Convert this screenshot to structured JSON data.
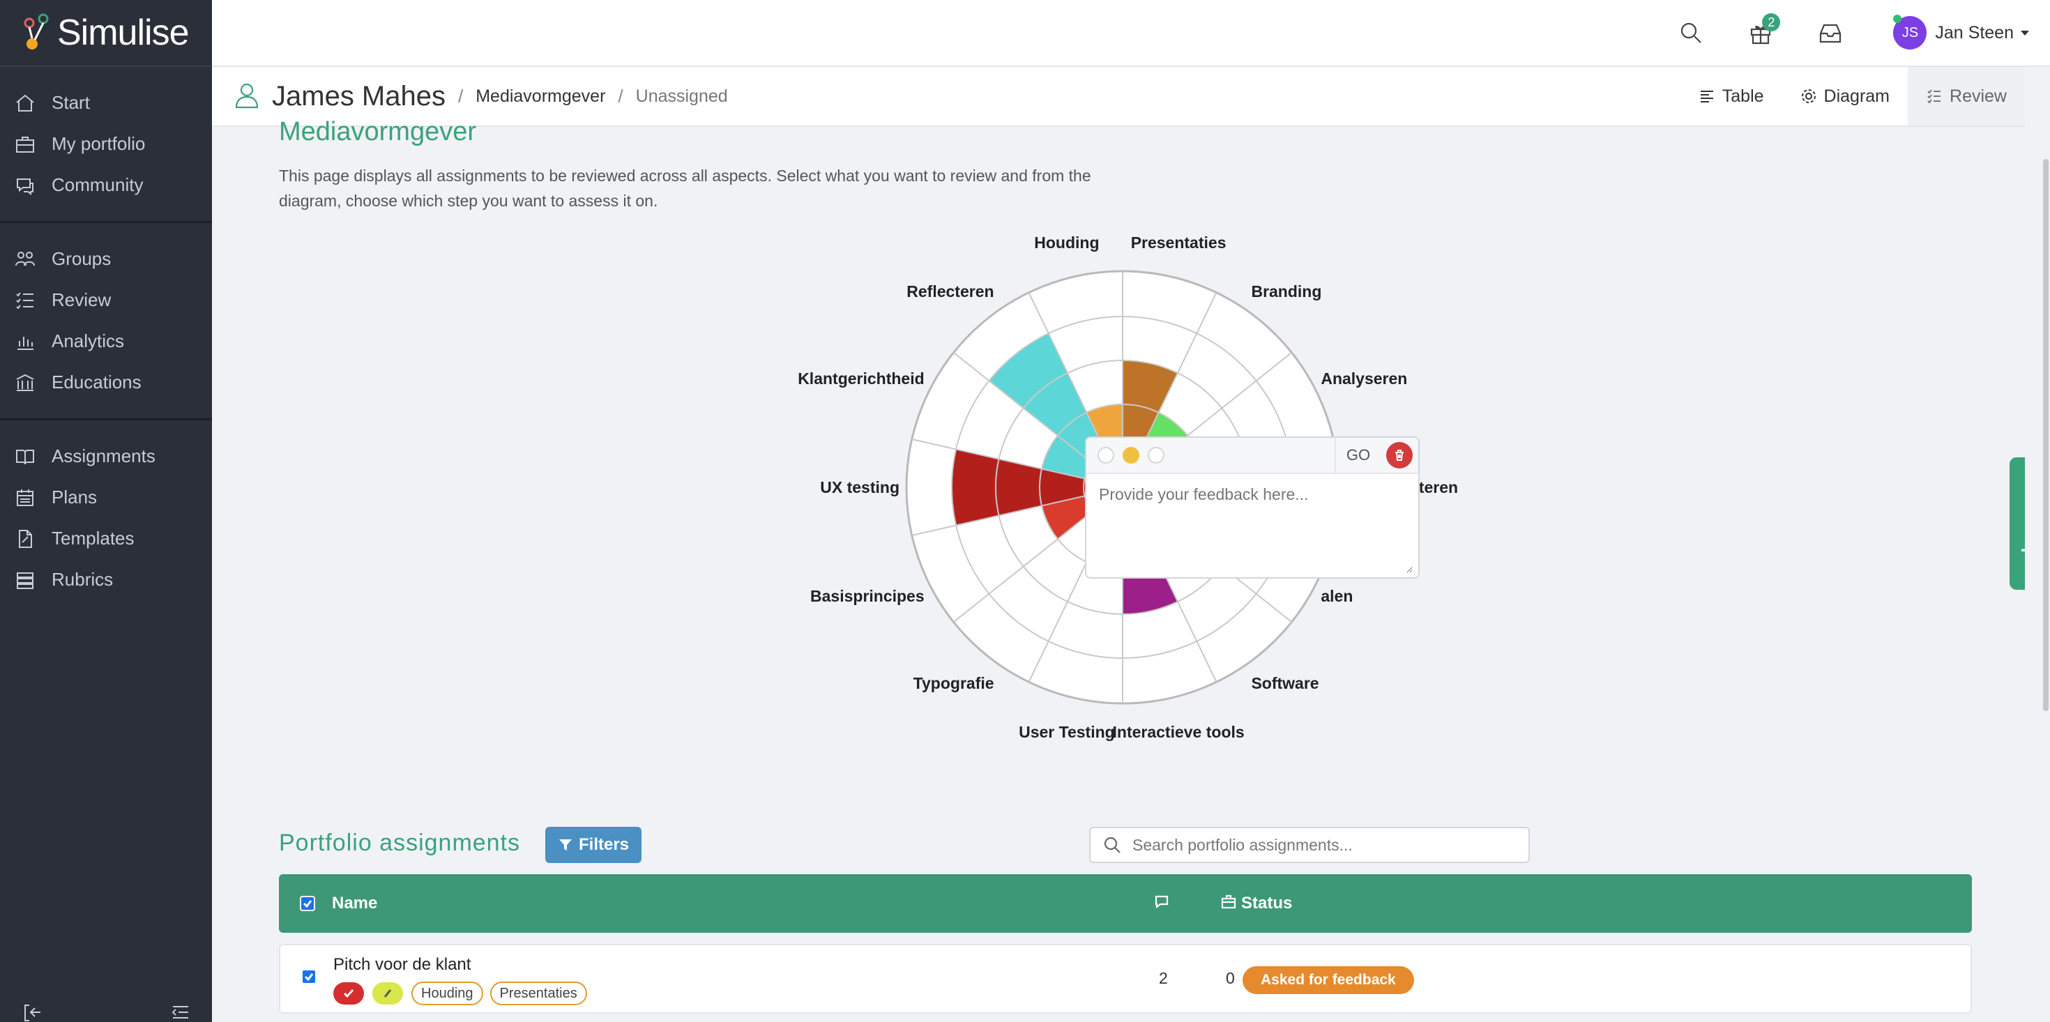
{
  "app": {
    "name": "Simulise"
  },
  "sidebar": {
    "groups": [
      [
        {
          "label": "Start",
          "icon": "home-icon"
        },
        {
          "label": "My portfolio",
          "icon": "briefcase-icon"
        },
        {
          "label": "Community",
          "icon": "chat-icon"
        }
      ],
      [
        {
          "label": "Groups",
          "icon": "users-icon"
        },
        {
          "label": "Review",
          "icon": "checklist-icon"
        },
        {
          "label": "Analytics",
          "icon": "bar-chart-icon"
        },
        {
          "label": "Educations",
          "icon": "institution-icon"
        }
      ],
      [
        {
          "label": "Assignments",
          "icon": "book-icon"
        },
        {
          "label": "Plans",
          "icon": "calendar-icon"
        },
        {
          "label": "Templates",
          "icon": "template-icon"
        },
        {
          "label": "Rubrics",
          "icon": "rubric-icon"
        }
      ]
    ]
  },
  "topbar": {
    "gift_badge": "2",
    "user": {
      "initials": "JS",
      "name": "Jan Steen"
    }
  },
  "subheader": {
    "name": "James Mahes",
    "crumb1": "Mediavormgever",
    "crumb2": "Unassigned",
    "tabs": {
      "table": "Table",
      "diagram": "Diagram",
      "review": "Review"
    }
  },
  "page": {
    "heading": "Mediavormgever",
    "description": "This page displays all assignments to be reviewed across all aspects. Select what you want to review and from the diagram, choose which step you want to assess it on."
  },
  "diagram": {
    "labels": [
      "Presentaties",
      "Branding",
      "Analyseren",
      "Documenteren",
      "alen",
      "Software",
      "Interactieve tools",
      "User Testing",
      "Typografie",
      "Basisprincipes",
      "UX testing",
      "Klantgerichtheid",
      "Reflecteren",
      "Houding"
    ],
    "segments": [
      {
        "aspect": "Presentaties",
        "level": 3,
        "color": "#bd7428"
      },
      {
        "aspect": "Branding",
        "level": 2,
        "color": "#66e066"
      },
      {
        "aspect": "Software",
        "level": 2,
        "color": "#1a10e0"
      },
      {
        "aspect": "Interactieve tools",
        "level": 3,
        "color": "#9c1f8a"
      },
      {
        "aspect": "User Testing",
        "level": 2,
        "color": "#d63ccf"
      },
      {
        "aspect": "Typografie",
        "level": 1,
        "color": "#cc2b2b"
      },
      {
        "aspect": "Basisprincipes",
        "level": 2,
        "color": "#d93b2c"
      },
      {
        "aspect": "UX testing",
        "level": 4,
        "color": "#b3201c"
      },
      {
        "aspect": "Klantgerichtheid",
        "level": 2,
        "color": "#5cd6d6"
      },
      {
        "aspect": "Reflecteren",
        "level": 4,
        "color": "#5cd6d6"
      },
      {
        "aspect": "Houding",
        "level": 2,
        "color": "#eea63c"
      },
      {
        "aspect": "alen",
        "level": 1,
        "color": "#e0e0e0"
      }
    ]
  },
  "popup": {
    "go_label": "GO",
    "placeholder": "Provide your feedback here..."
  },
  "need_help": "Need help?",
  "assignments": {
    "title": "Portfolio assignments",
    "filters_label": "Filters",
    "search_placeholder": "Search portfolio assignments...",
    "columns": {
      "name": "Name",
      "status": "Status"
    },
    "rows": [
      {
        "name": "Pitch voor de klant",
        "tags": [
          "Houding",
          "Presentaties"
        ],
        "status": "Asked for feedback",
        "comments": "2",
        "portfolio": "0"
      }
    ]
  },
  "colors": {
    "accent": "#3aa37a",
    "table_header": "#3d9878",
    "sidebar": "#2b2f3a",
    "status_orange": "#e68a2e"
  }
}
